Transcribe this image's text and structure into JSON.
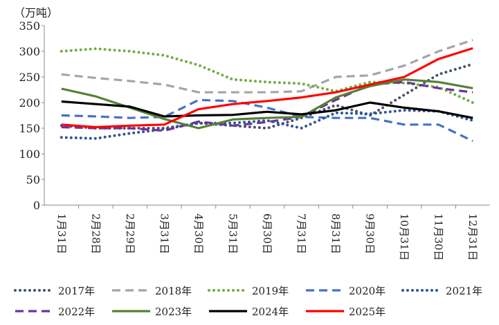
{
  "chart_data": {
    "type": "line",
    "unit_label": "（万吨）",
    "ylim": [
      0,
      350
    ],
    "yticks": [
      0,
      50,
      100,
      150,
      200,
      250,
      300,
      350
    ],
    "legend_position": "bottom",
    "categories": [
      "1月31日",
      "2月28日",
      "2月29日",
      "3月31日",
      "4月30日",
      "5月31日",
      "6月30日",
      "7月31日",
      "8月31日",
      "9月30日",
      "10月31日",
      "11月30日",
      "12月31日"
    ],
    "series": [
      {
        "name": "2017年",
        "color": "#44546a",
        "style": "dotted",
        "values": [
          155,
          150,
          150,
          150,
          160,
          155,
          150,
          170,
          195,
          175,
          215,
          255,
          275
        ]
      },
      {
        "name": "2018年",
        "color": "#a5a5a5",
        "style": "dashed",
        "values": [
          255,
          248,
          242,
          235,
          220,
          220,
          220,
          222,
          250,
          253,
          272,
          300,
          322
        ]
      },
      {
        "name": "2019年",
        "color": "#70ad47",
        "style": "dotted",
        "values": [
          300,
          305,
          300,
          292,
          273,
          245,
          240,
          237,
          222,
          240,
          238,
          230,
          200
        ]
      },
      {
        "name": "2020年",
        "color": "#4472c4",
        "style": "dashed",
        "values": [
          175,
          173,
          170,
          172,
          205,
          203,
          190,
          172,
          170,
          170,
          157,
          157,
          125
        ]
      },
      {
        "name": "2021年",
        "color": "#2f5597",
        "style": "dotted",
        "values": [
          132,
          130,
          140,
          148,
          160,
          160,
          165,
          150,
          180,
          178,
          185,
          183,
          165
        ]
      },
      {
        "name": "2022年",
        "color": "#7030a0",
        "style": "dashed",
        "values": [
          152,
          150,
          150,
          145,
          163,
          155,
          162,
          172,
          205,
          235,
          240,
          228,
          220
        ]
      },
      {
        "name": "2023年",
        "color": "#548235",
        "style": "solid",
        "values": [
          227,
          212,
          190,
          168,
          150,
          167,
          170,
          172,
          210,
          232,
          245,
          240,
          228
        ]
      },
      {
        "name": "2024年",
        "color": "#000000",
        "style": "solid",
        "values": [
          202,
          197,
          192,
          173,
          175,
          176,
          182,
          177,
          185,
          200,
          190,
          183,
          170
        ]
      },
      {
        "name": "2025年",
        "color": "#ff0000",
        "style": "solid",
        "values": [
          157,
          152,
          155,
          157,
          187,
          197,
          203,
          210,
          220,
          235,
          250,
          285,
          306
        ]
      }
    ]
  }
}
